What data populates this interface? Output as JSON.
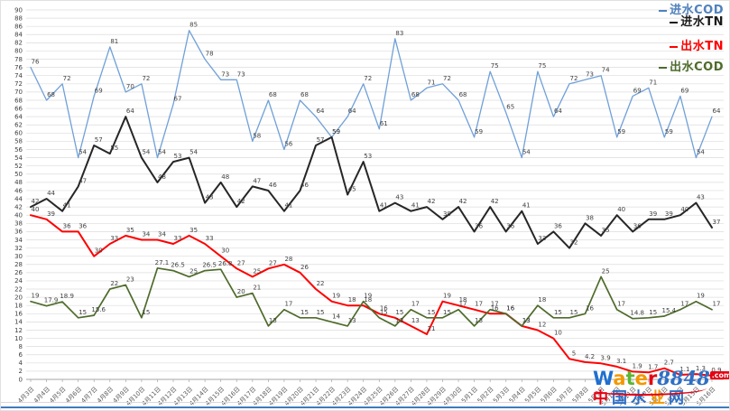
{
  "legend": {
    "items": [
      {
        "label": "进水COD",
        "color": "#4f81bd",
        "bold": true
      },
      {
        "label": "进水TN",
        "color": "#1a1a1a",
        "bold": true
      },
      {
        "label": "出水TN",
        "color": "#ff0000",
        "bold": true
      },
      {
        "label": "出水COD",
        "color": "#4e6b2b",
        "bold": true
      }
    ]
  },
  "watermark": {
    "line1_parts": [
      {
        "text": "W",
        "color": "#1f6fd0"
      },
      {
        "text": "a",
        "color": "#f39800"
      },
      {
        "text": "t",
        "color": "#5cb531"
      },
      {
        "text": "e",
        "color": "#f39800"
      },
      {
        "text": "r",
        "color": "#e60012"
      },
      {
        "text": "8848",
        "color": "#2e6fc5",
        "num": true
      }
    ],
    "com_badge": ".com",
    "line2_chars": [
      {
        "text": "中",
        "color": "#e60012"
      },
      {
        "text": "国",
        "color": "#2e6fc5"
      },
      {
        "text": "水",
        "color": "#2e6fc5"
      },
      {
        "text": "业",
        "color": "#f39800"
      },
      {
        "text": "网",
        "color": "#2e6fc5"
      }
    ]
  },
  "chart_data": {
    "type": "line",
    "title": "",
    "xlabel": "",
    "ylabel": "",
    "ylim": [
      0,
      90
    ],
    "y_step": 2,
    "grid": true,
    "legend_position": "top-right",
    "categories": [
      "4月3日",
      "4月4日",
      "4月5日",
      "4月6日",
      "4月7日",
      "4月8日",
      "4月9日",
      "4月10日",
      "4月11日",
      "4月12日",
      "4月13日",
      "4月14日",
      "4月15日",
      "4月16日",
      "4月17日",
      "4月18日",
      "4月19日",
      "4月20日",
      "4月21日",
      "4月22日",
      "4月23日",
      "4月24日",
      "4月25日",
      "4月26日",
      "4月27日",
      "4月28日",
      "4月29日",
      "4月30日",
      "5月1日",
      "5月2日",
      "5月3日",
      "5月4日",
      "5月5日",
      "5月6日",
      "5月7日",
      "5月8日",
      "5月9日",
      "5月10日",
      "5月11日",
      "5月12日",
      "5月13日",
      "5月14日",
      "5月15日",
      "5月16日"
    ],
    "series": [
      {
        "name": "进水COD",
        "color": "#6fa0d8",
        "width": 1.3,
        "values": [
          76,
          68,
          72,
          54,
          69,
          81,
          70,
          72,
          54,
          67,
          85,
          78,
          73,
          73,
          58,
          68,
          56,
          68,
          64,
          59,
          64,
          72,
          61,
          83,
          68,
          71,
          72,
          68,
          59,
          75,
          65,
          54,
          75,
          64,
          72,
          73,
          74,
          59,
          69,
          71,
          59,
          69,
          54,
          64
        ]
      },
      {
        "name": "进水TN",
        "color": "#262626",
        "width": 2,
        "values": [
          42,
          44,
          41,
          47,
          57,
          55,
          64,
          54,
          48,
          53,
          54,
          43,
          48,
          42,
          47,
          46,
          41,
          46,
          57,
          59,
          45,
          53,
          41,
          43,
          41,
          42,
          39,
          42,
          36,
          42,
          36,
          41,
          33,
          36,
          32,
          38,
          35,
          40,
          36,
          39,
          39,
          40,
          43,
          37
        ]
      },
      {
        "name": "出水TN",
        "color": "#ff0000",
        "width": 2,
        "values": [
          40,
          39,
          36,
          36,
          30,
          33,
          35,
          34,
          34,
          33,
          35,
          33,
          30,
          27,
          25,
          27,
          28,
          26,
          22,
          19,
          18,
          18,
          16,
          15,
          13,
          11,
          19,
          18,
          17,
          16,
          16,
          13,
          12,
          10,
          5,
          4.2,
          3.9,
          3.1,
          1.9,
          1.7,
          2.7,
          1.1,
          1.3,
          0.9
        ]
      },
      {
        "name": "出水COD",
        "color": "#4e6b2b",
        "width": 1.7,
        "values": [
          19,
          17.9,
          18.9,
          15,
          15.6,
          22,
          23,
          15,
          27.1,
          26.5,
          25,
          26.5,
          26.8,
          20,
          21,
          13,
          17,
          15,
          15,
          14,
          13,
          19,
          15,
          13,
          17,
          15,
          15,
          17,
          13,
          17,
          16,
          13,
          18,
          15,
          15,
          16,
          25,
          17,
          14.8,
          15,
          15.4,
          17,
          19,
          17
        ]
      }
    ]
  }
}
